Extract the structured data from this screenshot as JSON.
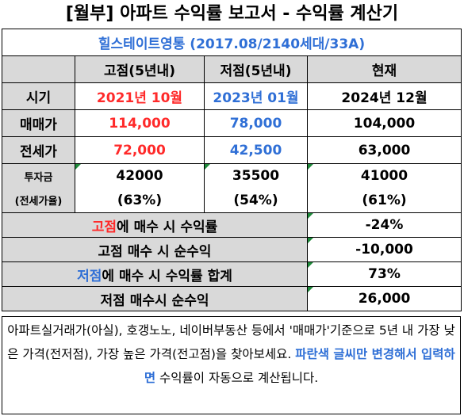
{
  "title": "[월부] 아파트 수익률 보고서 - 수익률 계산기",
  "complex": "힐스테이트영통 (2017.08/2140세대/33A)",
  "columns": {
    "high": "고점(5년내)",
    "low": "저점(5년내)",
    "current": "현재"
  },
  "rows": {
    "period": {
      "label": "시기",
      "high": "2021년 10월",
      "low": "2023년 01월",
      "current": "2024년 12월"
    },
    "sale": {
      "label": "매매가",
      "high": "114,000",
      "low": "78,000",
      "current": "104,000"
    },
    "jeonse": {
      "label": "전세가",
      "high": "72,000",
      "low": "42,500",
      "current": "63,000"
    },
    "invest": {
      "label": "투자금",
      "label2": "(전세가율)",
      "high": "42000",
      "high_rate": "(63%)",
      "low": "35500",
      "low_rate": "(54%)",
      "current": "41000",
      "current_rate": "(61%)"
    }
  },
  "summary": {
    "high_return": {
      "emph": "고점",
      "rest": "에 매수 시 수익률",
      "value": "-24%"
    },
    "high_profit": {
      "label": "고점 매수 시 순수익",
      "value": "-10,000"
    },
    "low_return": {
      "emph": "저점",
      "rest": "에 매수 시 수익률 합계",
      "value": "73%"
    },
    "low_profit": {
      "label": "저점 매수시 순수익",
      "value": "26,000"
    }
  },
  "note": {
    "part1": "아파트실거래가(아실), 호갱노노, 네이버부동산 등에서 '매매가'기준으로 5년 내 가장 낮은 가격(전저점), 가장 높은 가격(전고점)을 찾아보세요. ",
    "highlight": "파란색 글씨만 변경해서 입력하면",
    "part2": " 수익률이 자동으로 계산됩니다."
  },
  "colors": {
    "red": "#ff2a2a",
    "blue": "#2f6fd6",
    "header_bg": "#d9d9d9",
    "marker": "#1f8a3b"
  }
}
